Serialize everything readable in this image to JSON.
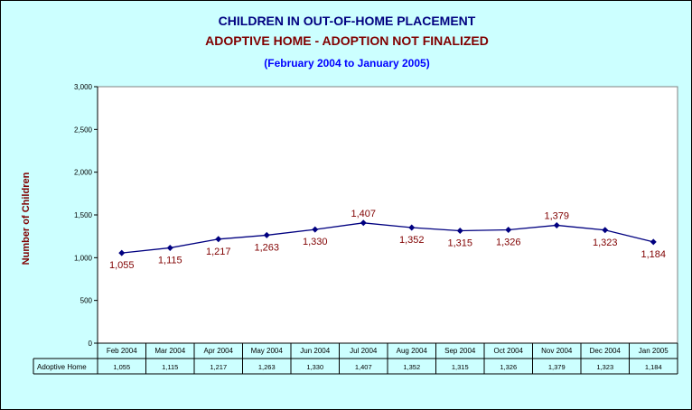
{
  "chart_data": {
    "type": "line",
    "title": "CHILDREN IN OUT-OF-HOME PLACEMENT",
    "subtitle": "ADOPTIVE HOME -  ADOPTION NOT FINALIZED",
    "period": "(February 2004 to January 2005)",
    "ylabel": "Number of Children",
    "xlabel": "",
    "ylim": [
      0,
      3000
    ],
    "yticks": [
      0,
      500,
      1000,
      1500,
      2000,
      2500,
      3000
    ],
    "ytick_labels": [
      "0",
      "500",
      "1,000",
      "1,500",
      "2,000",
      "2,500",
      "3,000"
    ],
    "categories": [
      "Feb 2004",
      "Mar 2004",
      "Apr 2004",
      "May 2004",
      "Jun 2004",
      "Jul 2004",
      "Aug 2004",
      "Sep 2004",
      "Oct 2004",
      "Nov 2004",
      "Dec 2004",
      "Jan 2005"
    ],
    "series": [
      {
        "name": "Adoptive Home",
        "values": [
          1055,
          1115,
          1217,
          1263,
          1330,
          1407,
          1352,
          1315,
          1326,
          1379,
          1323,
          1184
        ],
        "value_labels": [
          "1,055",
          "1,115",
          "1,217",
          "1,263",
          "1,330",
          "1,407",
          "1,352",
          "1,315",
          "1,326",
          "1,379",
          "1,323",
          "1,184"
        ]
      }
    ],
    "grid": false,
    "data_table": true,
    "colors": {
      "background": "#ccffff",
      "plot_area": "#ffffff",
      "line": "#000080",
      "title": "#000080",
      "subtitle": "#800000",
      "period": "#0000ff",
      "value_labels": "#800000",
      "ylabel": "#800000"
    }
  }
}
